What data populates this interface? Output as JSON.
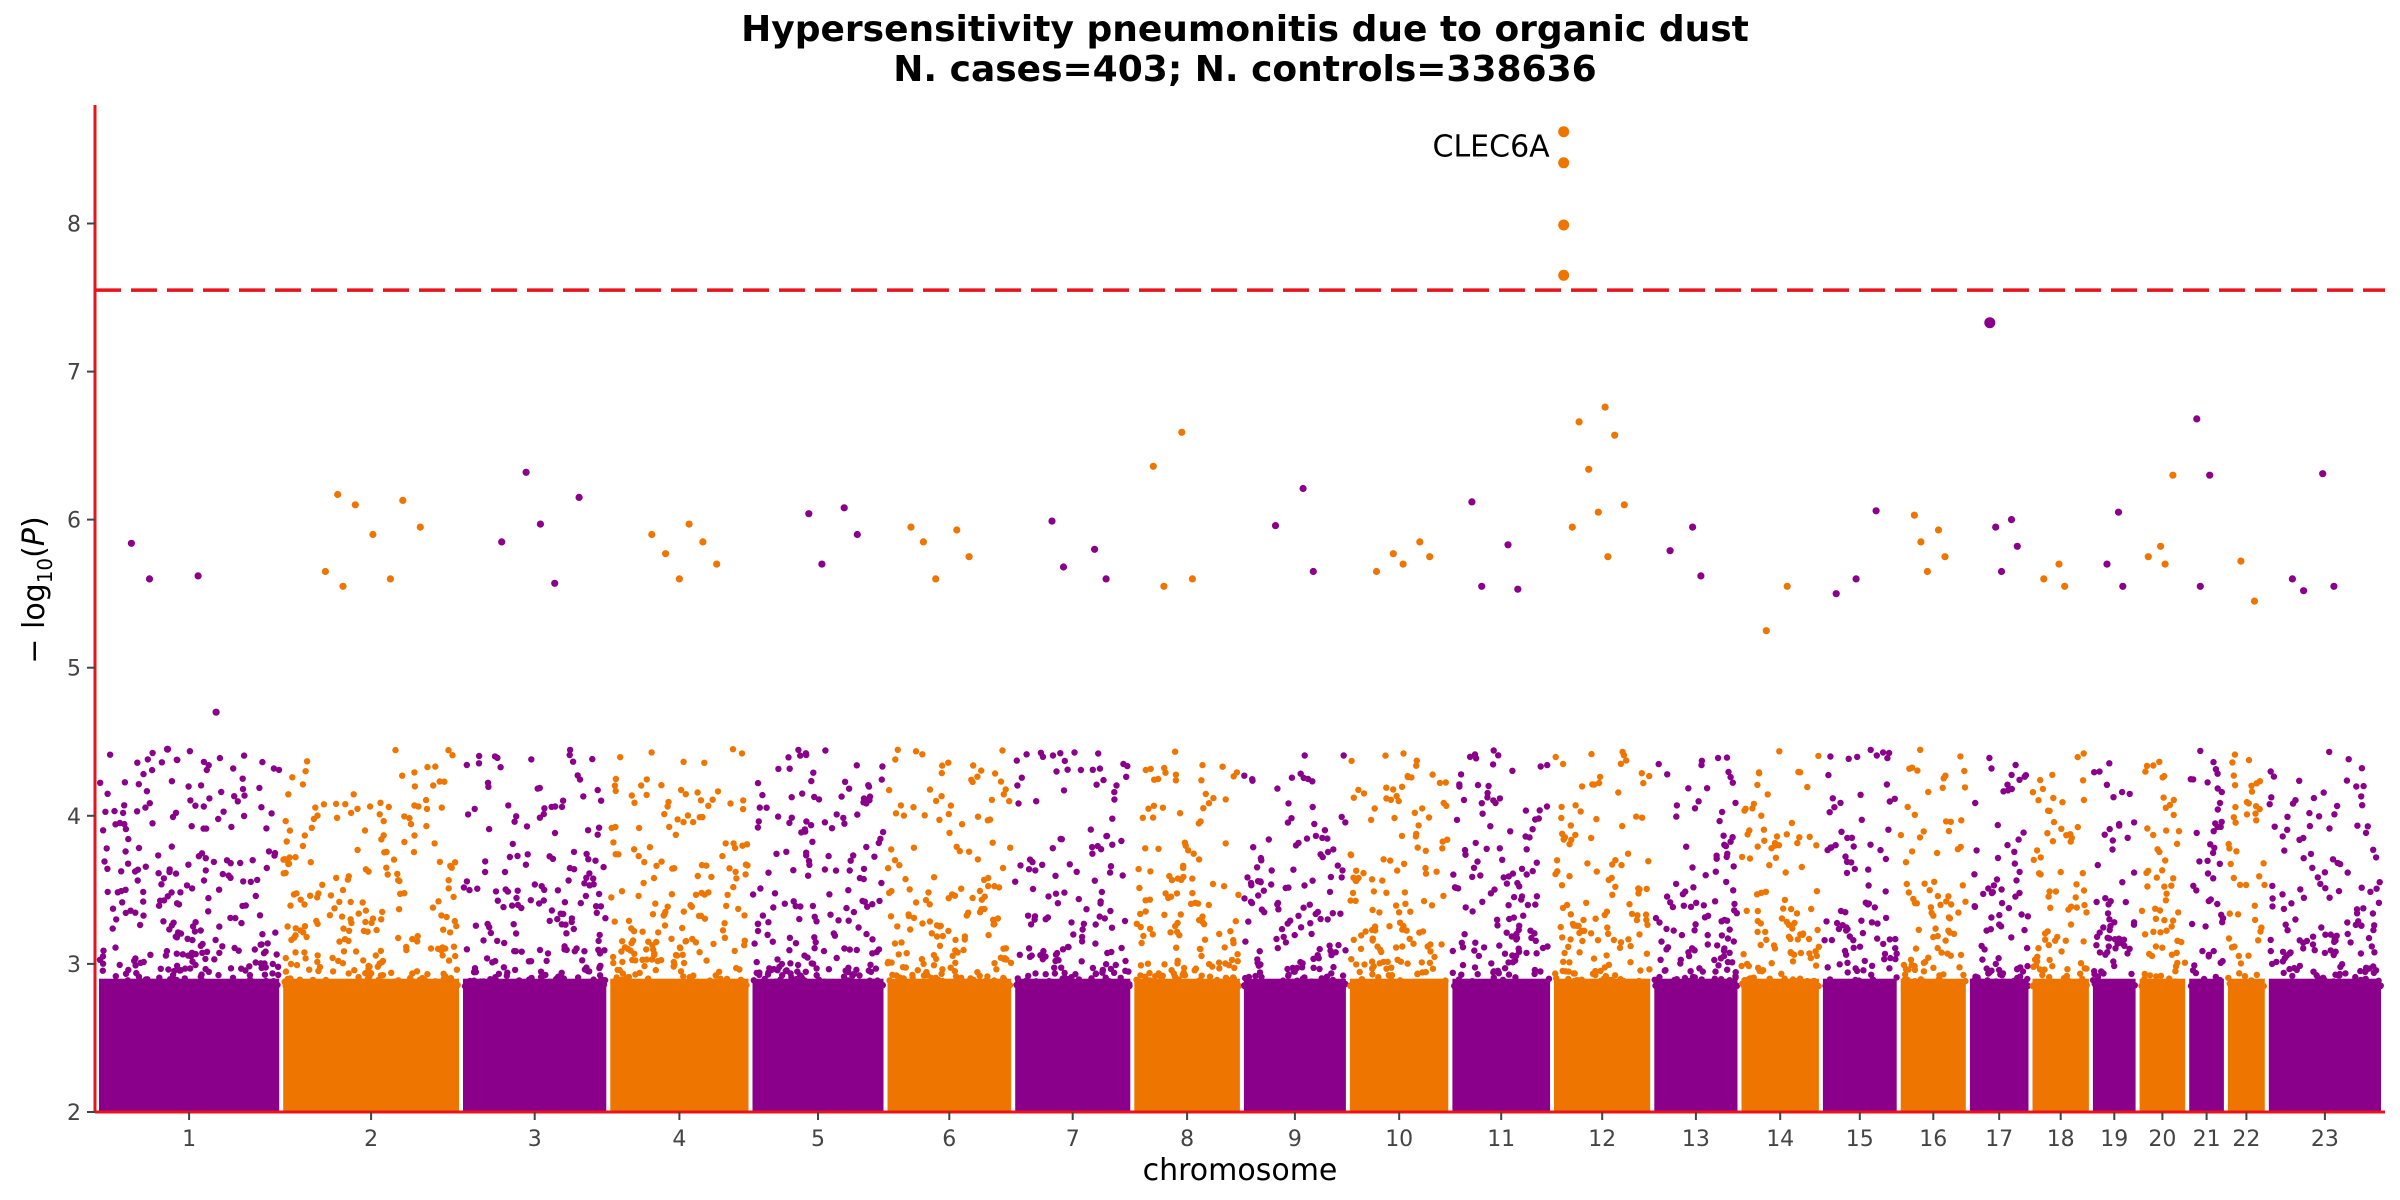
{
  "chart_data": {
    "type": "scatter",
    "subtype": "manhattan",
    "title": "Hypersensitivity pneumonitis due to organic dust",
    "subtitle": "N. cases=403; N. controls=338636",
    "xlabel": "chromosome",
    "ylabel_main": "− log",
    "ylabel_sub": "10",
    "ylabel_var": "P",
    "ylim": [
      2,
      8.8
    ],
    "yticks": [
      2,
      3,
      4,
      5,
      6,
      7,
      8
    ],
    "significance_threshold": 7.55,
    "colors": {
      "odd": "#8B008B",
      "even": "#EE7600",
      "threshold": "#E8141B",
      "axis": "#E8141B"
    },
    "chromosomes": [
      {
        "label": "1",
        "length": 249,
        "peak": 5.84,
        "hits": [
          5.84,
          5.62,
          5.6,
          4.7,
          4.45
        ]
      },
      {
        "label": "2",
        "length": 243,
        "peak": 6.17,
        "hits": [
          6.17,
          6.13,
          6.1,
          5.95,
          5.9,
          5.65,
          5.6,
          5.55
        ]
      },
      {
        "label": "3",
        "length": 198,
        "peak": 6.32,
        "hits": [
          6.32,
          6.15,
          5.97,
          5.85,
          5.57
        ]
      },
      {
        "label": "4",
        "length": 191,
        "peak": 5.97,
        "hits": [
          5.97,
          5.9,
          5.85,
          5.77,
          5.7,
          5.6
        ]
      },
      {
        "label": "5",
        "length": 181,
        "peak": 6.08,
        "hits": [
          6.08,
          6.04,
          5.9,
          5.7
        ]
      },
      {
        "label": "6",
        "length": 171,
        "peak": 5.95,
        "hits": [
          5.95,
          5.93,
          5.85,
          5.75,
          5.6
        ]
      },
      {
        "label": "7",
        "length": 159,
        "peak": 5.99,
        "hits": [
          5.99,
          5.8,
          5.68,
          5.6
        ]
      },
      {
        "label": "8",
        "length": 146,
        "peak": 6.59,
        "hits": [
          6.59,
          6.36,
          5.6,
          5.55
        ]
      },
      {
        "label": "9",
        "length": 141,
        "peak": 6.21,
        "hits": [
          6.21,
          5.96,
          5.65
        ]
      },
      {
        "label": "10",
        "length": 136,
        "peak": 5.85,
        "hits": [
          5.85,
          5.77,
          5.75,
          5.7,
          5.65
        ]
      },
      {
        "label": "11",
        "length": 135,
        "peak": 6.12,
        "hits": [
          6.12,
          5.83,
          5.55,
          5.53
        ]
      },
      {
        "label": "12",
        "length": 133,
        "peak": 8.62,
        "hits": [
          8.62,
          8.41,
          7.99,
          7.65,
          6.76,
          6.66,
          6.57,
          6.34,
          6.1,
          6.05,
          5.95,
          5.75
        ]
      },
      {
        "label": "13",
        "length": 115,
        "peak": 5.95,
        "hits": [
          5.95,
          5.79,
          5.62
        ]
      },
      {
        "label": "14",
        "length": 107,
        "peak": 5.55,
        "hits": [
          5.55,
          5.25
        ]
      },
      {
        "label": "15",
        "length": 102,
        "peak": 6.06,
        "hits": [
          6.06,
          5.6,
          5.5
        ]
      },
      {
        "label": "16",
        "length": 90,
        "peak": 6.03,
        "hits": [
          6.03,
          5.93,
          5.85,
          5.75,
          5.65
        ]
      },
      {
        "label": "17",
        "length": 81,
        "peak": 7.33,
        "hits": [
          7.33,
          6.0,
          5.95,
          5.82,
          5.65
        ]
      },
      {
        "label": "18",
        "length": 78,
        "peak": 5.7,
        "hits": [
          5.7,
          5.6,
          5.55
        ]
      },
      {
        "label": "19",
        "length": 59,
        "peak": 6.05,
        "hits": [
          6.05,
          5.7,
          5.55
        ]
      },
      {
        "label": "20",
        "length": 63,
        "peak": 6.3,
        "hits": [
          6.3,
          5.82,
          5.75,
          5.7
        ]
      },
      {
        "label": "21",
        "length": 48,
        "peak": 6.68,
        "hits": [
          6.68,
          6.3,
          5.55
        ]
      },
      {
        "label": "22",
        "length": 51,
        "peak": 5.72,
        "hits": [
          5.72,
          5.45
        ]
      },
      {
        "label": "23",
        "length": 155,
        "peak": 6.31,
        "hits": [
          6.31,
          5.6,
          5.55,
          5.52
        ]
      }
    ],
    "annotations": [
      {
        "label": "CLEC6A",
        "chromosome": "12",
        "value": 8.52
      }
    ]
  }
}
